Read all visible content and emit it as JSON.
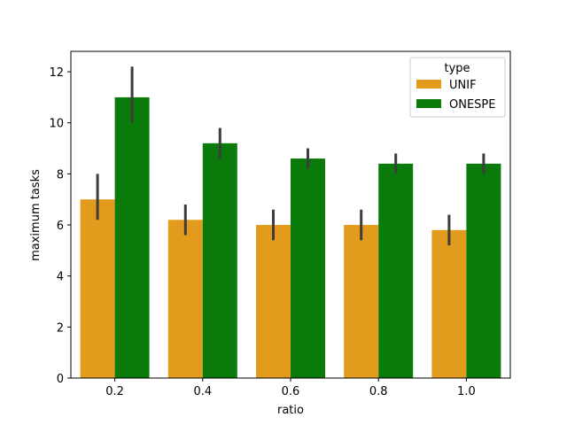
{
  "chart_data": {
    "type": "bar",
    "title": "",
    "xlabel": "ratio",
    "ylabel": "maximum tasks",
    "categories": [
      "0.2",
      "0.4",
      "0.6",
      "0.8",
      "1.0"
    ],
    "ylim": [
      0,
      12.8
    ],
    "yticks": [
      0,
      2,
      4,
      6,
      8,
      10,
      12
    ],
    "grid": false,
    "legend": {
      "title": "type",
      "placement": "top-right"
    },
    "series": [
      {
        "name": "UNIF",
        "color": "#e39b1e",
        "values": [
          7.0,
          6.2,
          6.0,
          6.0,
          5.8
        ],
        "error_low": [
          6.2,
          5.6,
          5.4,
          5.4,
          5.2
        ],
        "error_high": [
          8.0,
          6.8,
          6.6,
          6.6,
          6.4
        ]
      },
      {
        "name": "ONESPE",
        "color": "#0a7a0a",
        "values": [
          11.0,
          9.2,
          8.6,
          8.4,
          8.4
        ],
        "error_low": [
          10.0,
          8.6,
          8.2,
          8.0,
          8.0
        ],
        "error_high": [
          12.2,
          9.8,
          9.0,
          8.8,
          8.8
        ]
      }
    ]
  }
}
